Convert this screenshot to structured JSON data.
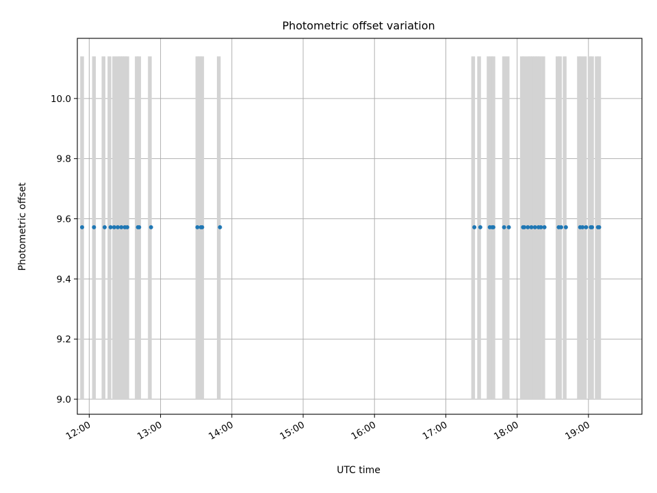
{
  "chart_data": {
    "type": "scatter",
    "title": "Photometric offset variation",
    "xlabel": "UTC time",
    "ylabel": "Photometric offset",
    "xlim": [
      "11:50",
      "19:45"
    ],
    "ylim": [
      8.95,
      10.2
    ],
    "grid": true,
    "x_ticks": [
      "12:00",
      "13:00",
      "14:00",
      "15:00",
      "16:00",
      "17:00",
      "18:00",
      "19:00"
    ],
    "y_ticks": [
      "9.0",
      "9.2",
      "9.4",
      "9.6",
      "9.8",
      "10.0"
    ],
    "exposure_bands": {
      "y_from": 9.0,
      "y_to": 10.14,
      "color": "#d3d3d3",
      "times": [
        "11:54",
        "12:04",
        "12:12",
        "12:17",
        "12:21",
        "12:24",
        "12:26",
        "12:28",
        "12:30",
        "12:32",
        "12:40",
        "12:42",
        "12:51",
        "13:31",
        "13:33",
        "13:35",
        "13:49",
        "17:23",
        "17:28",
        "17:36",
        "17:38",
        "17:40",
        "17:49",
        "17:52",
        "18:04",
        "18:06",
        "18:09",
        "18:11",
        "18:13",
        "18:15",
        "18:17",
        "18:19",
        "18:22",
        "18:34",
        "18:36",
        "18:40",
        "18:52",
        "18:54",
        "18:57",
        "19:01",
        "19:03",
        "19:07",
        "19:09"
      ]
    },
    "series": [
      {
        "color": "#1f77b4",
        "x": [
          "11:54",
          "12:04",
          "12:13",
          "12:18",
          "12:21",
          "12:24",
          "12:27",
          "12:30",
          "12:32",
          "12:41",
          "12:42",
          "12:52",
          "13:31",
          "13:34",
          "13:35",
          "13:50",
          "17:24",
          "17:29",
          "17:37",
          "17:39",
          "17:40",
          "17:49",
          "17:53",
          "18:05",
          "18:06",
          "18:09",
          "18:12",
          "18:15",
          "18:18",
          "18:20",
          "18:23",
          "18:35",
          "18:37",
          "18:41",
          "18:53",
          "18:55",
          "18:58",
          "19:02",
          "19:03",
          "19:08",
          "19:09"
        ],
        "y": [
          9.572,
          9.572,
          9.572,
          9.572,
          9.572,
          9.572,
          9.572,
          9.572,
          9.572,
          9.572,
          9.572,
          9.572,
          9.572,
          9.572,
          9.572,
          9.572,
          9.572,
          9.572,
          9.572,
          9.572,
          9.572,
          9.572,
          9.572,
          9.572,
          9.572,
          9.572,
          9.572,
          9.572,
          9.572,
          9.572,
          9.572,
          9.572,
          9.572,
          9.572,
          9.572,
          9.572,
          9.572,
          9.572,
          9.572,
          9.572,
          9.572
        ]
      }
    ]
  }
}
